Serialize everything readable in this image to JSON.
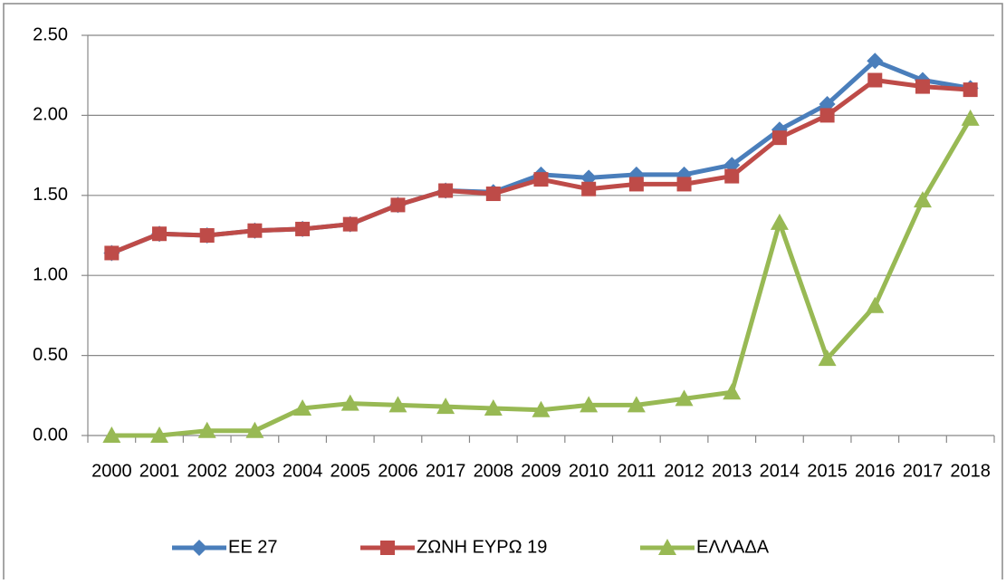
{
  "chart_data": {
    "type": "line",
    "categories": [
      "2000",
      "2001",
      "2002",
      "2003",
      "2004",
      "2005",
      "2006",
      "2017",
      "2008",
      "2009",
      "2010",
      "2011",
      "2012",
      "2013",
      "2014",
      "2015",
      "2016",
      "2017",
      "2018"
    ],
    "series": [
      {
        "name": "ΕΕ 27",
        "color": "#4a7ebb",
        "marker": "diamond",
        "values": [
          1.14,
          1.26,
          1.25,
          1.28,
          1.29,
          1.32,
          1.44,
          1.53,
          1.52,
          1.63,
          1.61,
          1.63,
          1.63,
          1.69,
          1.91,
          2.07,
          2.34,
          2.22,
          2.17
        ]
      },
      {
        "name": "ΖΩΝΗ ΕΥΡΩ 19",
        "color": "#be4b48",
        "marker": "square",
        "values": [
          1.14,
          1.26,
          1.25,
          1.28,
          1.29,
          1.32,
          1.44,
          1.53,
          1.51,
          1.6,
          1.54,
          1.57,
          1.57,
          1.62,
          1.86,
          2.0,
          2.22,
          2.18,
          2.16
        ]
      },
      {
        "name": "ΕΛΛΑΔΑ",
        "color": "#98b954",
        "marker": "triangle",
        "values": [
          0,
          0,
          0.03,
          0.03,
          0.17,
          0.2,
          0.19,
          0.18,
          0.17,
          0.16,
          0.19,
          0.19,
          0.23,
          0.27,
          1.33,
          0.48,
          0.81,
          1.47,
          1.98
        ]
      }
    ],
    "ylim": [
      0,
      2.5
    ],
    "yticks": [
      {
        "value": 0,
        "label": "0.00"
      },
      {
        "value": 0.5,
        "label": "0.50"
      },
      {
        "value": 1,
        "label": "1.00"
      },
      {
        "value": 1.5,
        "label": "1.50"
      },
      {
        "value": 2,
        "label": "2.00"
      },
      {
        "value": 2.5,
        "label": "2.50"
      }
    ],
    "grid": true,
    "legend": "bottom"
  }
}
